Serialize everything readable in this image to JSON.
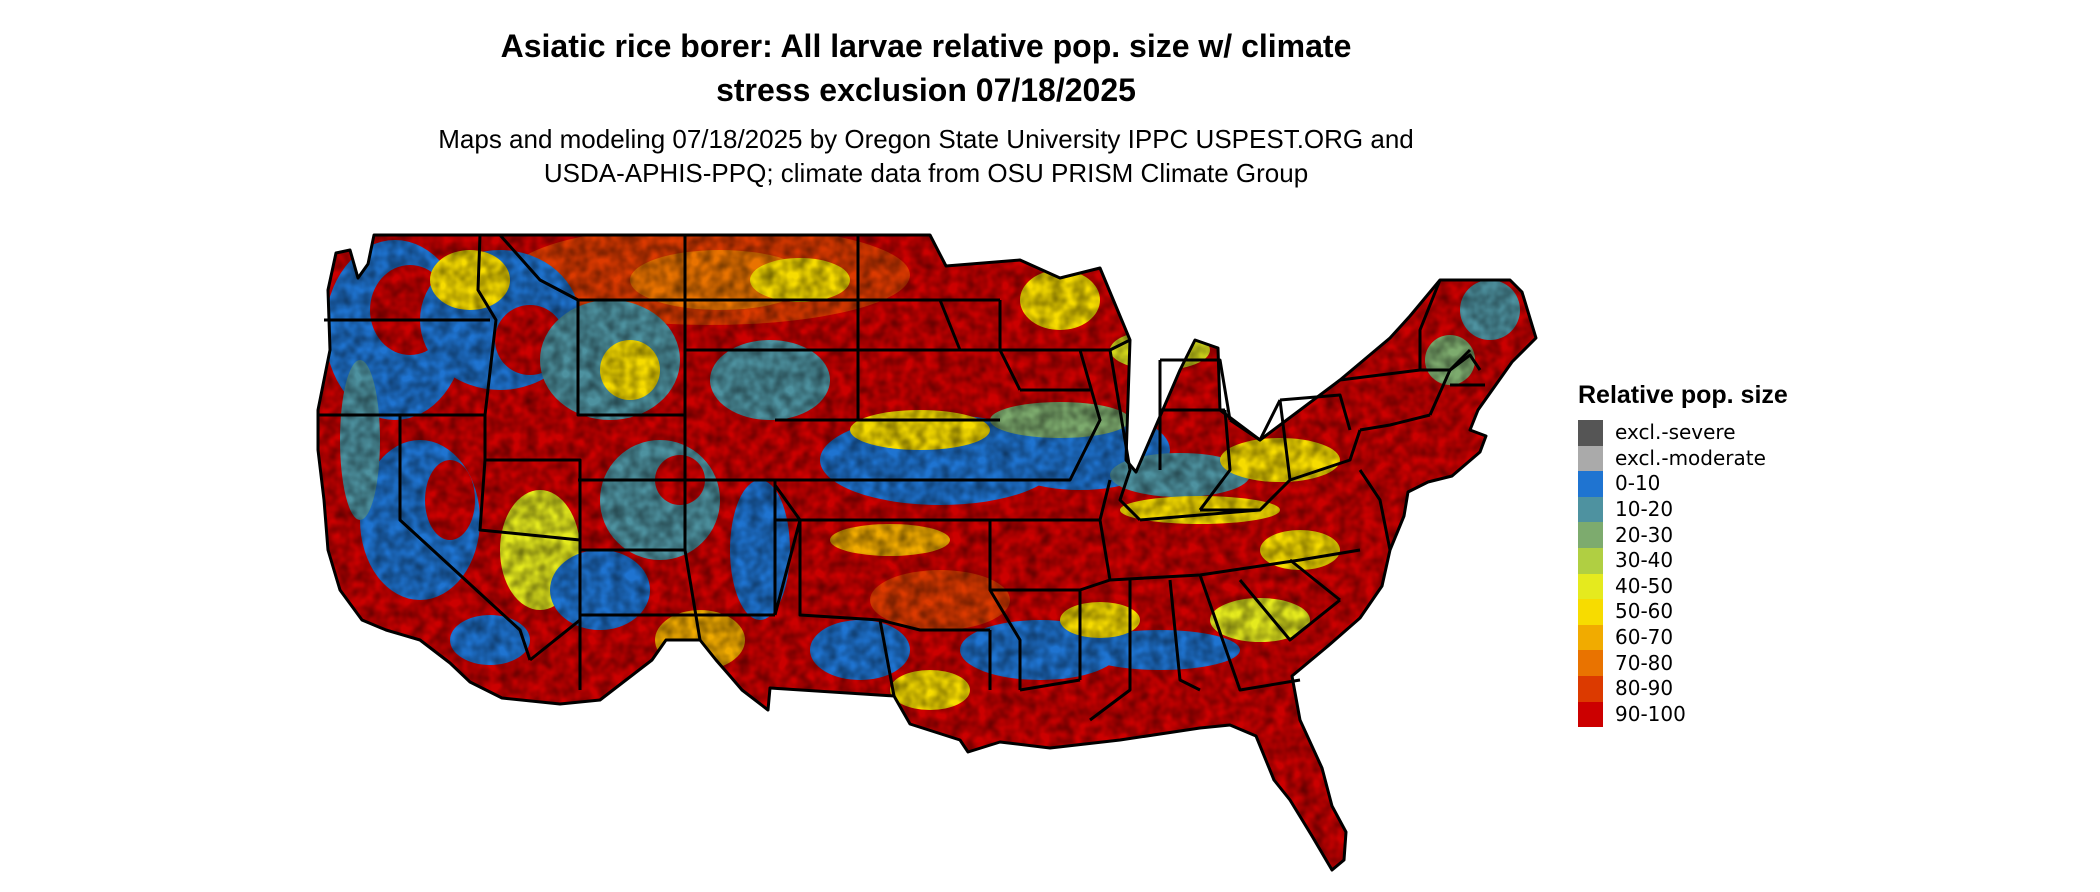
{
  "title_line1": "Asiatic rice borer: All larvae relative pop. size w/ climate",
  "title_line2": "stress exclusion 07/18/2025",
  "subtitle_line1": "Maps and modeling 07/18/2025 by Oregon State University IPPC USPEST.ORG and",
  "subtitle_line2": "USDA-APHIS-PPQ; climate data from OSU PRISM Climate Group",
  "legend": {
    "title": "Relative pop. size",
    "items": [
      {
        "label": "excl.-severe",
        "color": "#555555"
      },
      {
        "label": "excl.-moderate",
        "color": "#aaaaaa"
      },
      {
        "label": "0-10",
        "color": "#1f74d1"
      },
      {
        "label": "10-20",
        "color": "#4e92a0"
      },
      {
        "label": "20-30",
        "color": "#7dab6e"
      },
      {
        "label": "30-40",
        "color": "#b0cf42"
      },
      {
        "label": "40-50",
        "color": "#e5ea1e"
      },
      {
        "label": "50-60",
        "color": "#f7dc00"
      },
      {
        "label": "60-70",
        "color": "#f1ab00"
      },
      {
        "label": "70-80",
        "color": "#e97300"
      },
      {
        "label": "80-90",
        "color": "#dc3a00"
      },
      {
        "label": "90-100",
        "color": "#cc0000"
      }
    ]
  }
}
